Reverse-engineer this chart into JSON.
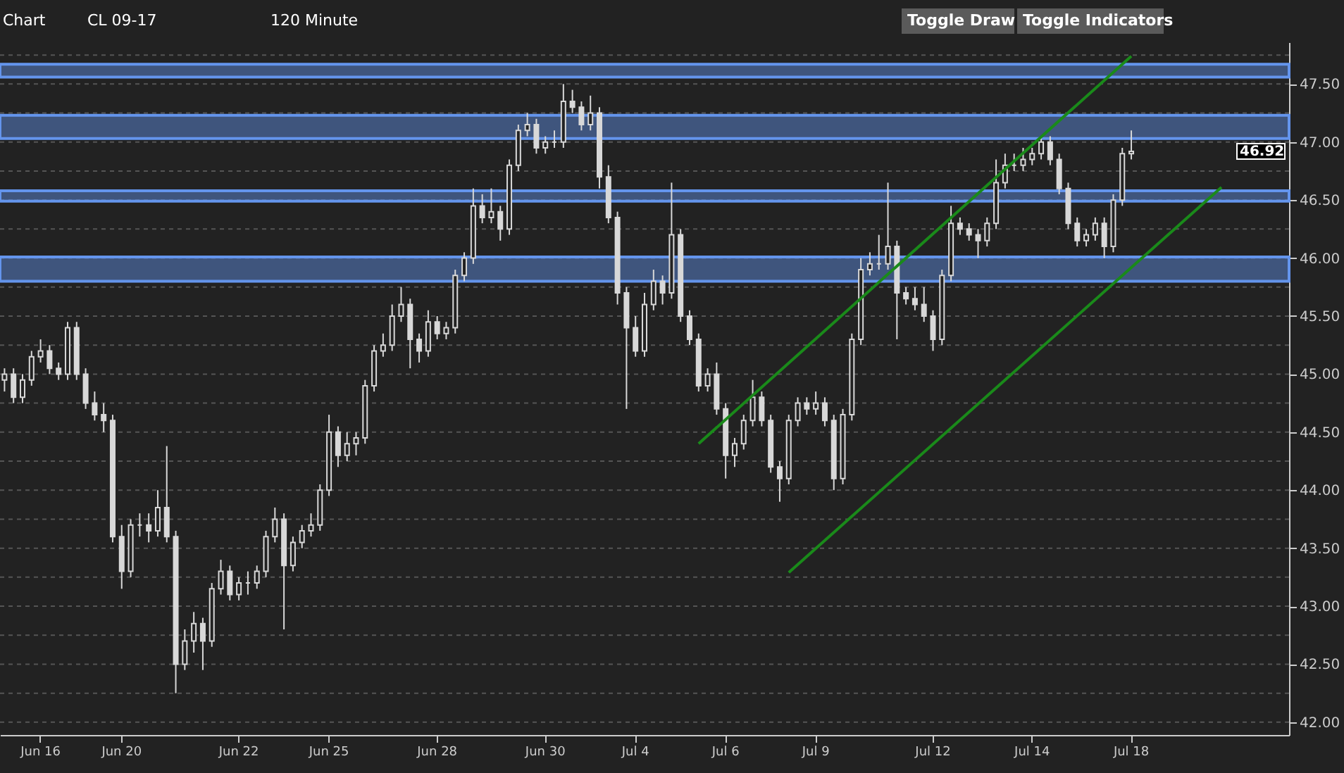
{
  "chart_data": {
    "type": "candlestick",
    "title": "CL 09-17",
    "subtitle": "120 Minute",
    "annotations": [
      "Chart",
      "Toggle Draw",
      "Toggle Indicators",
      "46.92"
    ],
    "categories": [
      null,
      null,
      null,
      null,
      "Jun 16",
      null,
      null,
      null,
      null,
      null,
      null,
      null,
      null,
      "Jun 20",
      null,
      null,
      null,
      null,
      null,
      null,
      null,
      null,
      null,
      null,
      null,
      null,
      "Jun 22",
      null,
      null,
      null,
      null,
      null,
      null,
      null,
      null,
      null,
      "Jun 25",
      null,
      null,
      null,
      null,
      null,
      null,
      null,
      null,
      null,
      null,
      null,
      "Jun 28",
      null,
      null,
      null,
      null,
      null,
      null,
      null,
      null,
      null,
      null,
      null,
      "Jun 30",
      null,
      null,
      null,
      null,
      null,
      null,
      null,
      null,
      null,
      "Jul 4",
      null,
      null,
      null,
      null,
      null,
      null,
      null,
      null,
      null,
      "Jul 6",
      null,
      null,
      null,
      null,
      null,
      null,
      null,
      null,
      null,
      "Jul 9",
      null,
      null,
      null,
      null,
      null,
      null,
      null,
      null,
      null,
      null,
      null,
      null,
      "Jul 12",
      null,
      null,
      null,
      null,
      null,
      null,
      null,
      null,
      null,
      null,
      "Jul 14",
      null,
      null,
      null,
      null,
      null,
      null,
      null,
      null,
      null,
      null,
      "Jul 18",
      null,
      null,
      null,
      null,
      null,
      null,
      null,
      null,
      null,
      null,
      null,
      null,
      null,
      null,
      null,
      null,
      null
    ],
    "ohlc": [
      [
        44.95,
        45.05,
        44.85,
        45.0
      ],
      [
        45.0,
        45.05,
        44.75,
        44.8
      ],
      [
        44.8,
        45.0,
        44.75,
        44.95
      ],
      [
        44.95,
        45.2,
        44.9,
        45.15
      ],
      [
        45.15,
        45.3,
        45.1,
        45.2
      ],
      [
        45.2,
        45.25,
        45.0,
        45.05
      ],
      [
        45.05,
        45.1,
        44.95,
        45.0
      ],
      [
        45.0,
        45.45,
        44.95,
        45.4
      ],
      [
        45.4,
        45.45,
        44.95,
        45.0
      ],
      [
        45.0,
        45.05,
        44.7,
        44.75
      ],
      [
        44.75,
        44.85,
        44.6,
        44.65
      ],
      [
        44.65,
        44.75,
        44.5,
        44.6
      ],
      [
        44.6,
        44.65,
        43.55,
        43.6
      ],
      [
        43.6,
        43.7,
        43.15,
        43.3
      ],
      [
        43.3,
        43.75,
        43.25,
        43.7
      ],
      [
        43.7,
        43.8,
        43.6,
        43.7
      ],
      [
        43.7,
        43.8,
        43.55,
        43.65
      ],
      [
        43.65,
        44.0,
        43.6,
        43.85
      ],
      [
        43.85,
        44.38,
        43.55,
        43.6
      ],
      [
        43.6,
        43.65,
        42.25,
        42.5
      ],
      [
        42.5,
        42.8,
        42.45,
        42.7
      ],
      [
        42.7,
        42.95,
        42.6,
        42.85
      ],
      [
        42.85,
        42.9,
        42.45,
        42.7
      ],
      [
        42.7,
        43.2,
        42.65,
        43.15
      ],
      [
        43.15,
        43.4,
        43.1,
        43.3
      ],
      [
        43.3,
        43.35,
        43.05,
        43.1
      ],
      [
        43.1,
        43.25,
        43.05,
        43.2
      ],
      [
        43.2,
        43.3,
        43.1,
        43.2
      ],
      [
        43.2,
        43.35,
        43.15,
        43.3
      ],
      [
        43.3,
        43.65,
        43.25,
        43.6
      ],
      [
        43.6,
        43.85,
        43.55,
        43.75
      ],
      [
        43.75,
        43.8,
        42.8,
        43.35
      ],
      [
        43.35,
        43.6,
        43.3,
        43.55
      ],
      [
        43.55,
        43.7,
        43.5,
        43.65
      ],
      [
        43.65,
        43.8,
        43.6,
        43.7
      ],
      [
        43.7,
        44.05,
        43.65,
        44.0
      ],
      [
        44.0,
        44.65,
        43.95,
        44.5
      ],
      [
        44.5,
        44.55,
        44.2,
        44.3
      ],
      [
        44.3,
        44.5,
        44.25,
        44.4
      ],
      [
        44.4,
        44.5,
        44.3,
        44.45
      ],
      [
        44.45,
        44.95,
        44.4,
        44.9
      ],
      [
        44.9,
        45.25,
        44.85,
        45.2
      ],
      [
        45.2,
        45.35,
        45.15,
        45.25
      ],
      [
        45.25,
        45.6,
        45.2,
        45.5
      ],
      [
        45.5,
        45.75,
        45.45,
        45.6
      ],
      [
        45.6,
        45.65,
        45.05,
        45.3
      ],
      [
        45.3,
        45.35,
        45.1,
        45.2
      ],
      [
        45.2,
        45.55,
        45.15,
        45.45
      ],
      [
        45.45,
        45.5,
        45.3,
        45.35
      ],
      [
        45.35,
        45.45,
        45.3,
        45.4
      ],
      [
        45.4,
        45.9,
        45.35,
        45.85
      ],
      [
        45.85,
        46.05,
        45.8,
        46.0
      ],
      [
        46.0,
        46.6,
        45.95,
        46.45
      ],
      [
        46.45,
        46.55,
        46.3,
        46.35
      ],
      [
        46.35,
        46.6,
        46.3,
        46.4
      ],
      [
        46.4,
        46.45,
        46.15,
        46.25
      ],
      [
        46.25,
        46.85,
        46.2,
        46.8
      ],
      [
        46.8,
        47.15,
        46.75,
        47.1
      ],
      [
        47.1,
        47.25,
        47.05,
        47.15
      ],
      [
        47.15,
        47.2,
        46.9,
        46.95
      ],
      [
        46.95,
        47.05,
        46.9,
        47.0
      ],
      [
        47.0,
        47.1,
        46.95,
        47.0
      ],
      [
        47.0,
        47.5,
        46.95,
        47.35
      ],
      [
        47.35,
        47.45,
        47.25,
        47.3
      ],
      [
        47.3,
        47.35,
        47.1,
        47.15
      ],
      [
        47.15,
        47.4,
        47.1,
        47.25
      ],
      [
        47.25,
        47.3,
        46.6,
        46.7
      ],
      [
        46.7,
        46.8,
        46.3,
        46.35
      ],
      [
        46.35,
        46.4,
        45.6,
        45.7
      ],
      [
        45.7,
        45.75,
        44.7,
        45.4
      ],
      [
        45.4,
        45.5,
        45.15,
        45.2
      ],
      [
        45.2,
        45.7,
        45.15,
        45.6
      ],
      [
        45.6,
        45.9,
        45.55,
        45.8
      ],
      [
        45.8,
        45.85,
        45.6,
        45.7
      ],
      [
        45.7,
        46.65,
        45.65,
        46.2
      ],
      [
        46.2,
        46.25,
        45.45,
        45.5
      ],
      [
        45.5,
        45.55,
        45.25,
        45.3
      ],
      [
        45.3,
        45.35,
        44.85,
        44.9
      ],
      [
        44.9,
        45.05,
        44.85,
        45.0
      ],
      [
        45.0,
        45.1,
        44.65,
        44.7
      ],
      [
        44.7,
        44.75,
        44.1,
        44.3
      ],
      [
        44.3,
        44.45,
        44.2,
        44.4
      ],
      [
        44.4,
        44.65,
        44.35,
        44.6
      ],
      [
        44.6,
        44.95,
        44.55,
        44.8
      ],
      [
        44.8,
        44.85,
        44.55,
        44.6
      ],
      [
        44.6,
        44.65,
        44.15,
        44.2
      ],
      [
        44.2,
        44.25,
        43.9,
        44.1
      ],
      [
        44.1,
        44.65,
        44.05,
        44.6
      ],
      [
        44.6,
        44.8,
        44.55,
        44.75
      ],
      [
        44.75,
        44.8,
        44.65,
        44.7
      ],
      [
        44.7,
        44.85,
        44.65,
        44.75
      ],
      [
        44.75,
        44.8,
        44.55,
        44.6
      ],
      [
        44.6,
        44.65,
        44.0,
        44.1
      ],
      [
        44.1,
        44.7,
        44.05,
        44.65
      ],
      [
        44.65,
        45.35,
        44.6,
        45.3
      ],
      [
        45.3,
        46.0,
        45.25,
        45.9
      ],
      [
        45.9,
        46.05,
        45.85,
        45.95
      ],
      [
        45.95,
        46.2,
        45.9,
        45.95
      ],
      [
        45.95,
        46.65,
        45.9,
        46.1
      ],
      [
        46.1,
        46.15,
        45.3,
        45.7
      ],
      [
        45.7,
        45.75,
        45.6,
        45.65
      ],
      [
        45.65,
        45.75,
        45.55,
        45.6
      ],
      [
        45.6,
        45.75,
        45.45,
        45.5
      ],
      [
        45.5,
        45.55,
        45.2,
        45.3
      ],
      [
        45.3,
        45.9,
        45.25,
        45.85
      ],
      [
        45.85,
        46.45,
        45.8,
        46.3
      ],
      [
        46.3,
        46.35,
        46.2,
        46.25
      ],
      [
        46.25,
        46.3,
        46.15,
        46.2
      ],
      [
        46.2,
        46.25,
        46.0,
        46.15
      ],
      [
        46.15,
        46.35,
        46.1,
        46.3
      ],
      [
        46.3,
        46.85,
        46.25,
        46.65
      ],
      [
        46.65,
        46.9,
        46.6,
        46.8
      ],
      [
        46.8,
        46.9,
        46.75,
        46.8
      ],
      [
        46.8,
        46.95,
        46.75,
        46.85
      ],
      [
        46.85,
        46.95,
        46.8,
        46.9
      ],
      [
        46.9,
        47.05,
        46.85,
        47.0
      ],
      [
        47.0,
        47.05,
        46.8,
        46.85
      ],
      [
        46.85,
        46.9,
        46.55,
        46.6
      ],
      [
        46.6,
        46.65,
        46.25,
        46.3
      ],
      [
        46.3,
        46.35,
        46.1,
        46.15
      ],
      [
        46.15,
        46.25,
        46.1,
        46.2
      ],
      [
        46.2,
        46.35,
        46.15,
        46.3
      ],
      [
        46.3,
        46.35,
        46.0,
        46.1
      ],
      [
        46.1,
        46.55,
        46.05,
        46.5
      ],
      [
        46.5,
        46.95,
        46.45,
        46.9
      ],
      [
        46.9,
        47.1,
        46.85,
        46.92
      ],
      null,
      null,
      null,
      null,
      null,
      null,
      null,
      null,
      null,
      null,
      null,
      null,
      null,
      null,
      null,
      null,
      null
    ],
    "color": "#d8d8d8",
    "series": [
      {
        "type": "line",
        "color": "#1a8a1a",
        "values": [
          null,
          null,
          null,
          null,
          null,
          null,
          null,
          null,
          null,
          null,
          null,
          null,
          null,
          null,
          null,
          null,
          null,
          null,
          null,
          null,
          null,
          null,
          null,
          null,
          null,
          null,
          null,
          null,
          null,
          null,
          null,
          null,
          null,
          null,
          null,
          null,
          null,
          null,
          null,
          null,
          null,
          null,
          null,
          null,
          null,
          null,
          null,
          null,
          null,
          null,
          null,
          null,
          null,
          null,
          null,
          null,
          null,
          null,
          null,
          null,
          null,
          null,
          null,
          null,
          null,
          null,
          null,
          null,
          null,
          null,
          null,
          null,
          null,
          null,
          null,
          null,
          null,
          44.4,
          null,
          null,
          null,
          null,
          null,
          null,
          null,
          null,
          null,
          null,
          null,
          null,
          null,
          null,
          null,
          null,
          null,
          null,
          null,
          null,
          null,
          null,
          null,
          null,
          null,
          null,
          null,
          null,
          null,
          null,
          null,
          null,
          null,
          null,
          null,
          null,
          null,
          null,
          null,
          null,
          null,
          null,
          null,
          null,
          null,
          null,
          null,
          47.74,
          null,
          null,
          null,
          null,
          null,
          null,
          null,
          null,
          null,
          null,
          null,
          null,
          null,
          null,
          null,
          null,
          null
        ]
      },
      {
        "type": "line",
        "color": "#1a8a1a",
        "values": [
          null,
          null,
          null,
          null,
          null,
          null,
          null,
          null,
          null,
          null,
          null,
          null,
          null,
          null,
          null,
          null,
          null,
          null,
          null,
          null,
          null,
          null,
          null,
          null,
          null,
          null,
          null,
          null,
          null,
          null,
          null,
          null,
          null,
          null,
          null,
          null,
          null,
          null,
          null,
          null,
          null,
          null,
          null,
          null,
          null,
          null,
          null,
          null,
          null,
          null,
          null,
          null,
          null,
          null,
          null,
          null,
          null,
          null,
          null,
          null,
          null,
          null,
          null,
          null,
          null,
          null,
          null,
          null,
          null,
          null,
          null,
          null,
          null,
          null,
          null,
          null,
          null,
          null,
          null,
          null,
          null,
          null,
          null,
          null,
          null,
          null,
          null,
          43.29,
          null,
          null,
          null,
          null,
          null,
          null,
          null,
          null,
          null,
          null,
          null,
          null,
          null,
          null,
          null,
          null,
          null,
          null,
          null,
          null,
          null,
          null,
          null,
          null,
          null,
          null,
          null,
          null,
          null,
          null,
          null,
          null,
          null,
          null,
          null,
          null,
          null,
          null,
          null,
          null,
          null,
          null,
          null,
          null,
          null,
          null,
          null,
          46.61,
          null,
          null,
          null,
          null,
          null,
          null,
          null
        ]
      }
    ],
    "bands": [
      {
        "axis": "y",
        "from": 47.56,
        "to": 47.67,
        "color": "#6495ed"
      },
      {
        "axis": "y",
        "from": 47.03,
        "to": 47.23,
        "color": "#6495ed"
      },
      {
        "axis": "y",
        "from": 46.49,
        "to": 46.58,
        "color": "#6495ed"
      },
      {
        "axis": "y",
        "from": 45.8,
        "to": 46.01,
        "color": "#6495ed"
      }
    ],
    "ylim": [
      41.89,
      47.86
    ],
    "yticks": [
      {
        "value": 42,
        "label": "42.00"
      },
      {
        "value": 42.25,
        "label": null
      },
      {
        "value": 42.5,
        "label": "42.50"
      },
      {
        "value": 42.75,
        "label": null
      },
      {
        "value": 43,
        "label": "43.00"
      },
      {
        "value": 43.25,
        "label": null
      },
      {
        "value": 43.5,
        "label": "43.50"
      },
      {
        "value": 43.75,
        "label": null
      },
      {
        "value": 44,
        "label": "44.00"
      },
      {
        "value": 44.25,
        "label": null
      },
      {
        "value": 44.5,
        "label": "44.50"
      },
      {
        "value": 44.75,
        "label": null
      },
      {
        "value": 45,
        "label": "45.00"
      },
      {
        "value": 45.25,
        "label": null
      },
      {
        "value": 45.5,
        "label": "45.50"
      },
      {
        "value": 45.75,
        "label": null
      },
      {
        "value": 46,
        "label": "46.00"
      },
      {
        "value": 46.25,
        "label": null
      },
      {
        "value": 46.5,
        "label": "46.50"
      },
      {
        "value": 46.75,
        "label": null
      },
      {
        "value": 47,
        "label": "47.00"
      },
      {
        "value": 47.25,
        "label": null
      },
      {
        "value": 47.5,
        "label": "47.50"
      },
      {
        "value": 47.75,
        "label": null
      }
    ],
    "grid": "y"
  }
}
